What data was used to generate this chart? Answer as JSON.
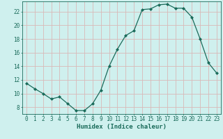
{
  "x": [
    0,
    1,
    2,
    3,
    4,
    5,
    6,
    7,
    8,
    9,
    10,
    11,
    12,
    13,
    14,
    15,
    16,
    17,
    18,
    19,
    20,
    21,
    22,
    23
  ],
  "y": [
    11.5,
    10.7,
    10.0,
    9.2,
    9.5,
    8.5,
    7.5,
    7.5,
    8.5,
    10.5,
    14.0,
    16.5,
    18.5,
    19.2,
    22.3,
    22.4,
    23.0,
    23.1,
    22.5,
    22.5,
    21.2,
    18.0,
    14.5,
    13.0
  ],
  "line_color": "#1a6b5a",
  "marker": "D",
  "marker_size": 2.0,
  "bg_color": "#cff0ee",
  "grid_color": "#d9b8b8",
  "xlabel": "Humidex (Indice chaleur)",
  "xlim": [
    -0.5,
    23.5
  ],
  "ylim": [
    7.0,
    23.5
  ],
  "yticks": [
    8,
    10,
    12,
    14,
    16,
    18,
    20,
    22
  ],
  "xticks": [
    0,
    1,
    2,
    3,
    4,
    5,
    6,
    7,
    8,
    9,
    10,
    11,
    12,
    13,
    14,
    15,
    16,
    17,
    18,
    19,
    20,
    21,
    22,
    23
  ],
  "xlabel_fontsize": 6.5,
  "tick_fontsize": 5.5,
  "linewidth": 0.9
}
